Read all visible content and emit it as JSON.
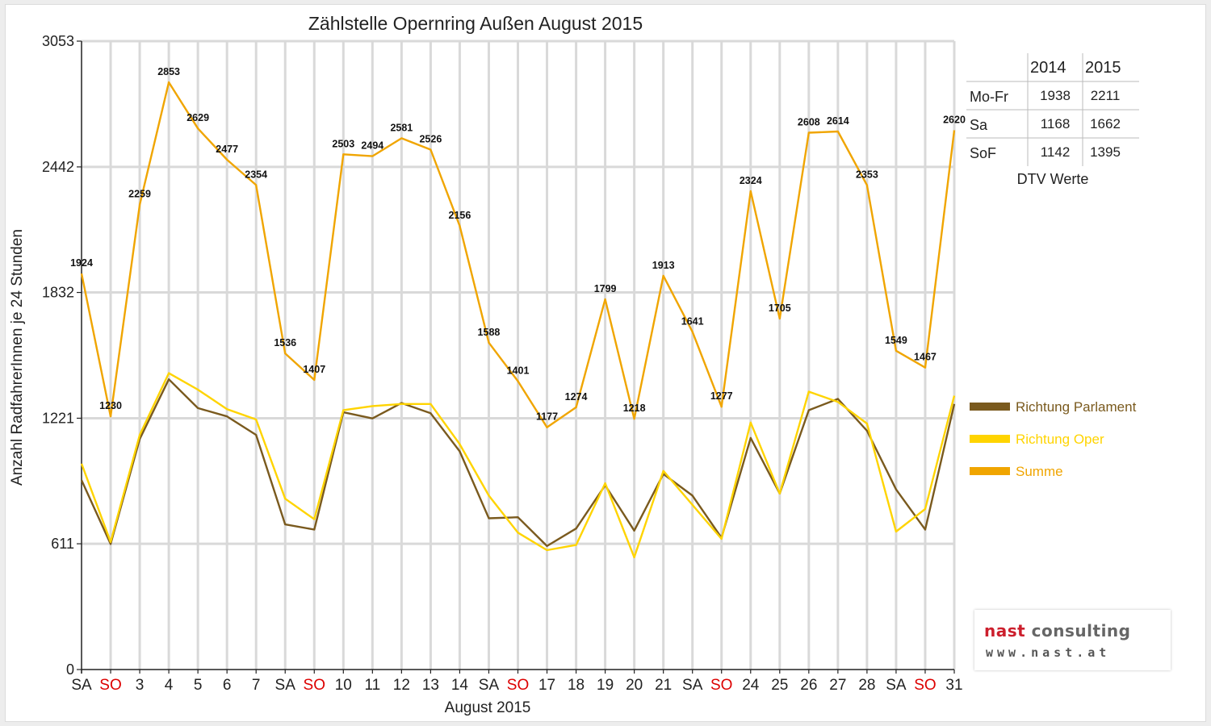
{
  "chart_data": {
    "type": "line",
    "title": "Zählstelle Opernring Außen August 2015",
    "xlabel": "August 2015",
    "ylabel": "Anzahl RadfahrerInnen je 24 Stunden",
    "ylim": [
      0,
      3053
    ],
    "yticks": [
      0,
      611,
      1221,
      1832,
      2442,
      3053
    ],
    "categories": [
      "SA",
      "SO",
      "3",
      "4",
      "5",
      "6",
      "7",
      "SA",
      "SO",
      "10",
      "11",
      "12",
      "13",
      "14",
      "SA",
      "SO",
      "17",
      "18",
      "19",
      "20",
      "21",
      "SA",
      "SO",
      "24",
      "25",
      "26",
      "27",
      "28",
      "SA",
      "SO",
      "31"
    ],
    "weekend_categories": [
      "SO"
    ],
    "grid": true,
    "legend_position": "right",
    "series": [
      {
        "name": "Richtung Parlament",
        "color": "#7a5a1e",
        "values": [
          920,
          610,
          1120,
          1410,
          1270,
          1230,
          1140,
          705,
          680,
          1250,
          1220,
          1295,
          1245,
          1060,
          735,
          740,
          600,
          685,
          895,
          675,
          950,
          845,
          640,
          1125,
          855,
          1260,
          1315,
          1160,
          875,
          680,
          1290
        ]
      },
      {
        "name": "Richtung Oper",
        "color": "#ffd400",
        "values": [
          1000,
          620,
          1140,
          1440,
          1360,
          1265,
          1215,
          830,
          730,
          1260,
          1280,
          1290,
          1290,
          1095,
          845,
          665,
          580,
          605,
          905,
          545,
          965,
          800,
          635,
          1200,
          855,
          1350,
          1300,
          1195,
          670,
          780,
          1330
        ]
      },
      {
        "name": "Summe",
        "color": "#f0a500",
        "values": [
          1924,
          1230,
          2259,
          2853,
          2629,
          2477,
          2354,
          1536,
          1407,
          2503,
          2494,
          2581,
          2526,
          2156,
          1588,
          1401,
          1177,
          1274,
          1799,
          1218,
          1913,
          1641,
          1277,
          2324,
          1705,
          2608,
          2614,
          2353,
          1549,
          1467,
          2620
        ],
        "data_labels": true
      }
    ]
  },
  "dtv_table": {
    "caption": "DTV Werte",
    "columns": [
      "",
      "2014",
      "2015"
    ],
    "rows": [
      {
        "label": "Mo-Fr",
        "v2014": "1938",
        "v2015": "2211"
      },
      {
        "label": "Sa",
        "v2014": "1168",
        "v2015": "1662"
      },
      {
        "label": "SoF",
        "v2014": "1142",
        "v2015": "1395"
      }
    ]
  },
  "logo": {
    "part1": "nast",
    "part2": "consulting",
    "url": "www.nast.at"
  },
  "colors": {
    "weekend_label": "#dd0000",
    "grid": "#d9d9d9"
  }
}
